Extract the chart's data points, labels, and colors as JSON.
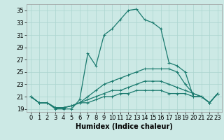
{
  "xlabel": "Humidex (Indice chaleur)",
  "xlim": [
    -0.5,
    23.5
  ],
  "ylim": [
    18.5,
    36
  ],
  "yticks": [
    19,
    21,
    23,
    25,
    27,
    29,
    31,
    33,
    35
  ],
  "xticks": [
    0,
    1,
    2,
    3,
    4,
    5,
    6,
    7,
    8,
    9,
    10,
    11,
    12,
    13,
    14,
    15,
    16,
    17,
    18,
    19,
    20,
    21,
    22,
    23
  ],
  "background_color": "#cce9e5",
  "grid_color": "#aad4cf",
  "line_color": "#1a7a6e",
  "lines": [
    [
      21.0,
      20.0,
      20.0,
      19.0,
      19.0,
      19.0,
      20.5,
      28.0,
      26.0,
      31.0,
      32.0,
      33.5,
      35.0,
      35.2,
      33.5,
      33.0,
      32.0,
      26.5,
      26.0,
      25.0,
      21.0,
      21.0,
      20.0,
      21.5
    ],
    [
      21.0,
      20.0,
      20.0,
      19.2,
      19.2,
      19.5,
      20.0,
      21.0,
      22.0,
      23.0,
      23.5,
      24.0,
      24.5,
      25.0,
      25.5,
      25.5,
      25.5,
      25.5,
      25.0,
      23.0,
      21.5,
      21.0,
      20.0,
      21.5
    ],
    [
      21.0,
      20.0,
      20.0,
      19.2,
      19.2,
      19.5,
      20.0,
      20.5,
      21.0,
      21.5,
      22.0,
      22.0,
      22.5,
      23.0,
      23.5,
      23.5,
      23.5,
      23.0,
      22.5,
      22.0,
      21.5,
      21.0,
      20.0,
      21.5
    ],
    [
      21.0,
      20.0,
      20.0,
      19.2,
      19.2,
      19.5,
      20.0,
      20.0,
      20.5,
      21.0,
      21.0,
      21.5,
      21.5,
      22.0,
      22.0,
      22.0,
      22.0,
      21.5,
      21.5,
      21.5,
      21.0,
      21.0,
      20.0,
      21.5
    ]
  ],
  "marker": "+",
  "marker_size": 3,
  "linewidth": 0.9,
  "font_size_ticks": 6,
  "font_size_label": 7
}
